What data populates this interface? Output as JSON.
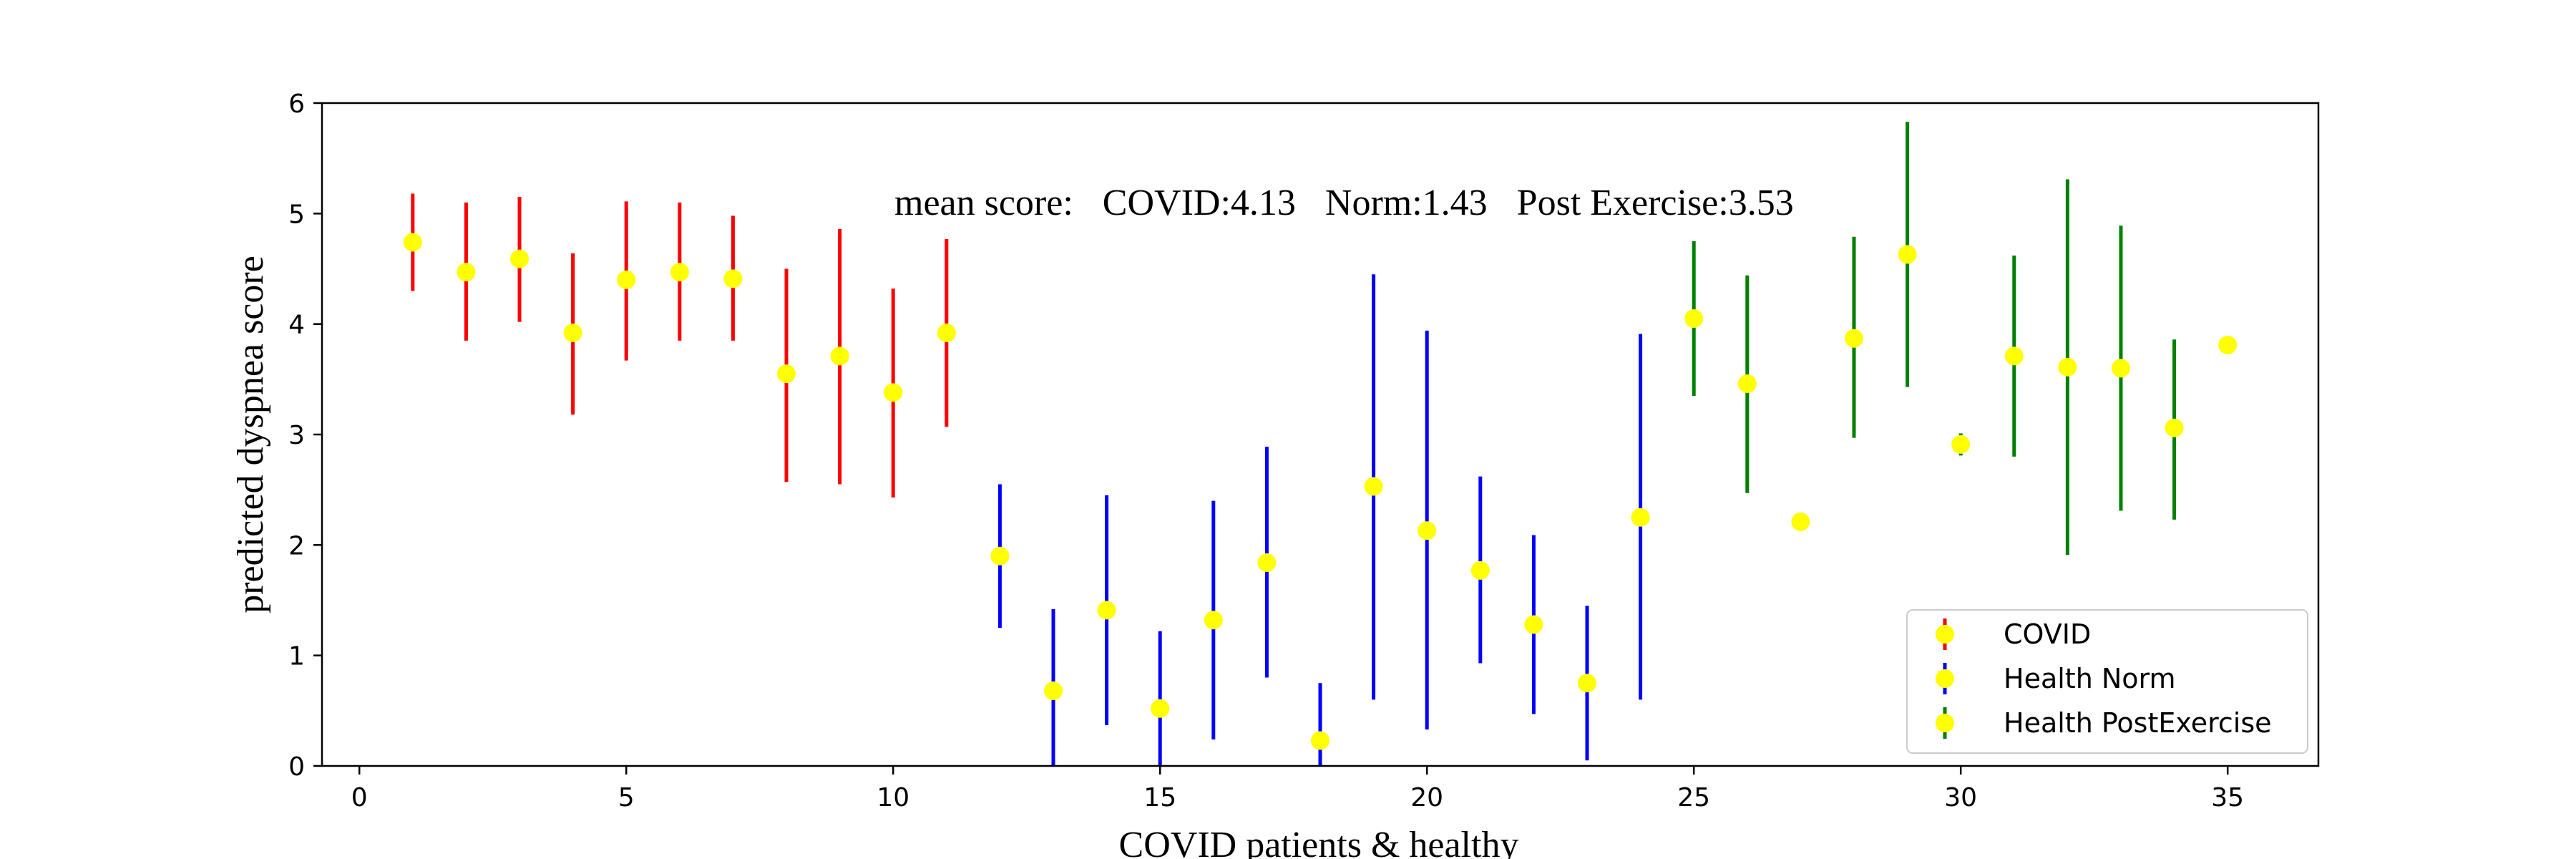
{
  "chart_data": {
    "type": "scatter",
    "xlabel": "COVID patients & healthy",
    "ylabel": "predicted dyspnea score",
    "xlim": [
      -0.7,
      36.7
    ],
    "ylim": [
      0,
      6
    ],
    "x_ticks": [
      0,
      5,
      10,
      15,
      20,
      25,
      30,
      35
    ],
    "y_ticks": [
      0,
      1,
      2,
      3,
      4,
      5,
      6
    ],
    "grid": false,
    "legend_position": "bottom-right",
    "marker_color": "#ffff00",
    "annotation": {
      "prefix": "mean score:",
      "covid": "COVID:4.13",
      "norm": "Norm:1.43",
      "post": "Post Exercise:3.53"
    },
    "series": [
      {
        "name": "COVID",
        "color": "#ff0000",
        "x": [
          1,
          2,
          3,
          4,
          5,
          6,
          7,
          8,
          9,
          10,
          11
        ],
        "y": [
          4.74,
          4.47,
          4.59,
          3.92,
          4.4,
          4.47,
          4.41,
          3.55,
          3.71,
          3.38,
          3.92
        ],
        "err_low": [
          4.3,
          3.85,
          4.02,
          3.18,
          3.67,
          3.85,
          3.85,
          2.57,
          2.55,
          2.43,
          3.07
        ],
        "err_high": [
          5.18,
          5.1,
          5.15,
          4.64,
          5.11,
          5.1,
          4.98,
          4.5,
          4.86,
          4.32,
          4.77
        ]
      },
      {
        "name": "Health Norm",
        "color": "#0000ff",
        "x": [
          12,
          13,
          14,
          15,
          16,
          17,
          18,
          19,
          20,
          21,
          22,
          23,
          24
        ],
        "y": [
          1.9,
          0.68,
          1.41,
          0.52,
          1.32,
          1.84,
          0.23,
          2.53,
          2.13,
          1.77,
          1.28,
          0.75,
          2.25
        ],
        "err_low": [
          1.25,
          0.0,
          0.37,
          0.0,
          0.24,
          0.8,
          0.0,
          0.6,
          0.33,
          0.93,
          0.47,
          0.05,
          0.6
        ],
        "err_high": [
          2.55,
          1.42,
          2.45,
          1.22,
          2.4,
          2.89,
          0.75,
          4.45,
          3.94,
          2.62,
          2.09,
          1.45,
          3.91
        ]
      },
      {
        "name": "Health PostExercise",
        "color": "#008000",
        "x": [
          25,
          26,
          27,
          28,
          29,
          30,
          31,
          32,
          33,
          34,
          35
        ],
        "y": [
          4.05,
          3.46,
          2.21,
          3.87,
          4.63,
          2.91,
          3.71,
          3.61,
          3.6,
          3.06,
          3.81
        ],
        "err_low": [
          3.35,
          2.47,
          2.21,
          2.97,
          3.43,
          2.81,
          2.8,
          1.91,
          2.31,
          2.23,
          3.81
        ],
        "err_high": [
          4.75,
          4.44,
          2.21,
          4.79,
          5.83,
          3.01,
          4.62,
          5.31,
          4.89,
          3.86,
          3.81
        ]
      }
    ]
  }
}
